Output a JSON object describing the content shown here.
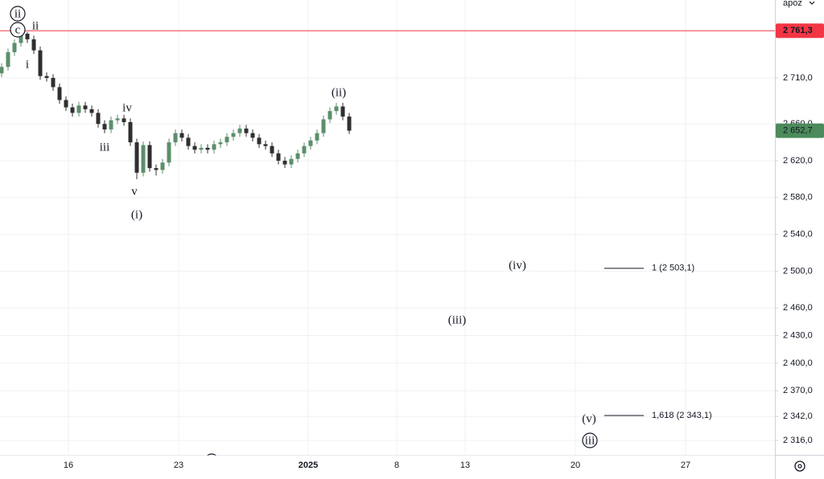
{
  "chart_data": {
    "type": "candlestick",
    "ylim": [
      2300.3,
      2794.7
    ],
    "yticks": [
      {
        "value": 2710,
        "label": "2 710,0"
      },
      {
        "value": 2660,
        "label": "2 660,0"
      },
      {
        "value": 2620,
        "label": "2 620,0"
      },
      {
        "value": 2580,
        "label": "2 580,0"
      },
      {
        "value": 2540,
        "label": "2 540,0"
      },
      {
        "value": 2500,
        "label": "2 500,0"
      },
      {
        "value": 2460,
        "label": "2 460,0"
      },
      {
        "value": 2430,
        "label": "2 430,0"
      },
      {
        "value": 2400,
        "label": "2 400,0"
      },
      {
        "value": 2370,
        "label": "2 370,0"
      },
      {
        "value": 2342,
        "label": "2 342,0"
      },
      {
        "value": 2316,
        "label": "2 316,0"
      }
    ],
    "xticks": [
      "16",
      "23",
      "2025",
      "8",
      "13",
      "20",
      "27"
    ],
    "grid": true,
    "up_color": "#5b8f6b",
    "down_color": "#2f2f2f",
    "open": [
      2715,
      2722,
      2738,
      2748,
      2758,
      2752,
      2740,
      2712,
      2710,
      2700,
      2686,
      2678,
      2672,
      2680,
      2676,
      2672,
      2660,
      2654,
      2664,
      2666,
      2662,
      2640,
      2607,
      2637,
      2612,
      2610,
      2618,
      2640,
      2650,
      2645,
      2636,
      2632,
      2634,
      2632,
      2638,
      2640,
      2646,
      2650,
      2655,
      2650,
      2645,
      2638,
      2636,
      2628,
      2620,
      2616,
      2622,
      2628,
      2636,
      2642,
      2650,
      2665,
      2674,
      2679,
      2668
    ],
    "high": [
      2726,
      2742,
      2752,
      2761,
      2760,
      2756,
      2744,
      2716,
      2714,
      2704,
      2690,
      2682,
      2684,
      2684,
      2680,
      2676,
      2664,
      2668,
      2670,
      2670,
      2666,
      2644,
      2641,
      2641,
      2616,
      2622,
      2644,
      2654,
      2654,
      2649,
      2640,
      2638,
      2638,
      2642,
      2644,
      2650,
      2654,
      2659,
      2659,
      2654,
      2649,
      2642,
      2640,
      2632,
      2624,
      2626,
      2632,
      2640,
      2646,
      2654,
      2669,
      2678,
      2683,
      2683,
      2672
    ],
    "low": [
      2711,
      2718,
      2734,
      2744,
      2748,
      2736,
      2708,
      2706,
      2696,
      2682,
      2674,
      2668,
      2668,
      2672,
      2668,
      2656,
      2650,
      2650,
      2660,
      2658,
      2636,
      2600,
      2603,
      2608,
      2604,
      2606,
      2614,
      2636,
      2641,
      2632,
      2628,
      2628,
      2628,
      2628,
      2634,
      2636,
      2642,
      2646,
      2646,
      2641,
      2634,
      2632,
      2624,
      2616,
      2612,
      2612,
      2618,
      2624,
      2632,
      2638,
      2646,
      2661,
      2670,
      2664,
      2649
    ],
    "close": [
      2722,
      2738,
      2748,
      2758,
      2752,
      2740,
      2712,
      2710,
      2700,
      2686,
      2678,
      2672,
      2680,
      2676,
      2672,
      2660,
      2654,
      2664,
      2666,
      2662,
      2640,
      2607,
      2637,
      2612,
      2610,
      2618,
      2640,
      2650,
      2645,
      2636,
      2632,
      2634,
      2632,
      2638,
      2640,
      2646,
      2650,
      2655,
      2650,
      2645,
      2638,
      2636,
      2628,
      2620,
      2616,
      2622,
      2628,
      2636,
      2642,
      2650,
      2665,
      2674,
      2679,
      2668,
      2652.7
    ],
    "price_line": {
      "value": 2761.3,
      "label": "2 761,3",
      "color": "#f23645"
    },
    "last_price": {
      "value": 2652.7,
      "label": "2 652,7",
      "color": "#4b8a5b"
    },
    "fib_levels": [
      {
        "value": 2503.1,
        "label": "1 (2 503,1)"
      },
      {
        "value": 2343.1,
        "label": "1,618 (2 343,1)"
      }
    ],
    "wave_labels": [
      "ii",
      "c",
      "ii",
      "i",
      "iv",
      "iii",
      "v",
      "(i)",
      "(ii)",
      "(iv)",
      "(iii)",
      "(v)",
      "iii"
    ],
    "currency_menu": "apoz"
  }
}
